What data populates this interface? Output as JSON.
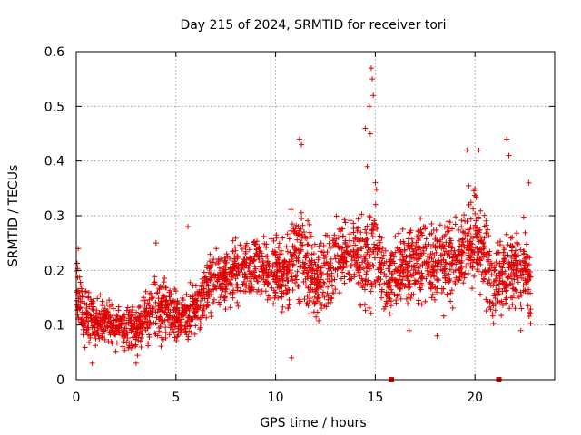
{
  "chart_data": {
    "type": "scatter",
    "title": "Day 215 of 2024, SRMTID for receiver tori",
    "xlabel": "GPS time / hours",
    "ylabel": "SRMTID / TECUs",
    "xlim": [
      0,
      24
    ],
    "ylim": [
      0,
      0.6
    ],
    "xticks": [
      0,
      5,
      10,
      15,
      20
    ],
    "xtick_labels": [
      "0",
      "5",
      "10",
      "15",
      "20"
    ],
    "yticks": [
      0,
      0.1,
      0.2,
      0.3,
      0.4,
      0.5,
      0.6
    ],
    "ytick_labels": [
      "0",
      "0.1",
      "0.2",
      "0.3",
      "0.4",
      "0.5",
      "0.6"
    ],
    "grid": true,
    "marker": "+",
    "color": "#e00000",
    "axis_markers_x": [
      15.8,
      21.2
    ],
    "series": [
      {
        "name": "SRMTID",
        "envelope_x": [
          0,
          0.5,
          1,
          1.5,
          2,
          2.5,
          3,
          3.5,
          4,
          4.5,
          5,
          5.5,
          6,
          6.5,
          7,
          7.5,
          8,
          8.5,
          9,
          9.5,
          10,
          10.5,
          11,
          11.5,
          12,
          12.5,
          13,
          13.5,
          14,
          14.5,
          15,
          15.5,
          16,
          16.5,
          17,
          17.5,
          18,
          18.5,
          19,
          19.5,
          20,
          20.5,
          21,
          21.5,
          22,
          22.5,
          22.8
        ],
        "envelope_mean": [
          0.15,
          0.11,
          0.1,
          0.11,
          0.1,
          0.1,
          0.09,
          0.11,
          0.13,
          0.13,
          0.12,
          0.12,
          0.13,
          0.16,
          0.18,
          0.19,
          0.2,
          0.21,
          0.21,
          0.2,
          0.2,
          0.19,
          0.24,
          0.22,
          0.18,
          0.19,
          0.22,
          0.24,
          0.23,
          0.21,
          0.24,
          0.19,
          0.18,
          0.2,
          0.21,
          0.22,
          0.22,
          0.21,
          0.22,
          0.24,
          0.26,
          0.22,
          0.18,
          0.19,
          0.2,
          0.21,
          0.16
        ],
        "envelope_spread": [
          0.05,
          0.04,
          0.04,
          0.035,
          0.035,
          0.035,
          0.04,
          0.04,
          0.05,
          0.045,
          0.045,
          0.04,
          0.04,
          0.045,
          0.045,
          0.045,
          0.045,
          0.05,
          0.05,
          0.05,
          0.05,
          0.06,
          0.08,
          0.07,
          0.06,
          0.06,
          0.06,
          0.06,
          0.06,
          0.07,
          0.1,
          0.05,
          0.06,
          0.06,
          0.07,
          0.07,
          0.07,
          0.07,
          0.07,
          0.07,
          0.08,
          0.07,
          0.06,
          0.06,
          0.06,
          0.07,
          0.05
        ],
        "notable_points": [
          {
            "x": 0.1,
            "y": 0.24
          },
          {
            "x": 0.8,
            "y": 0.03
          },
          {
            "x": 3.0,
            "y": 0.03
          },
          {
            "x": 4.0,
            "y": 0.25
          },
          {
            "x": 5.6,
            "y": 0.28
          },
          {
            "x": 10.8,
            "y": 0.04
          },
          {
            "x": 11.2,
            "y": 0.44
          },
          {
            "x": 11.3,
            "y": 0.43
          },
          {
            "x": 14.5,
            "y": 0.46
          },
          {
            "x": 14.7,
            "y": 0.5
          },
          {
            "x": 14.8,
            "y": 0.57
          },
          {
            "x": 14.85,
            "y": 0.55
          },
          {
            "x": 14.9,
            "y": 0.52
          },
          {
            "x": 14.75,
            "y": 0.45
          },
          {
            "x": 14.6,
            "y": 0.39
          },
          {
            "x": 19.6,
            "y": 0.42
          },
          {
            "x": 20.2,
            "y": 0.42
          },
          {
            "x": 21.6,
            "y": 0.44
          },
          {
            "x": 21.7,
            "y": 0.41
          },
          {
            "x": 18.1,
            "y": 0.08
          },
          {
            "x": 22.3,
            "y": 0.09
          },
          {
            "x": 22.7,
            "y": 0.36
          },
          {
            "x": 16.7,
            "y": 0.09
          }
        ]
      }
    ]
  }
}
